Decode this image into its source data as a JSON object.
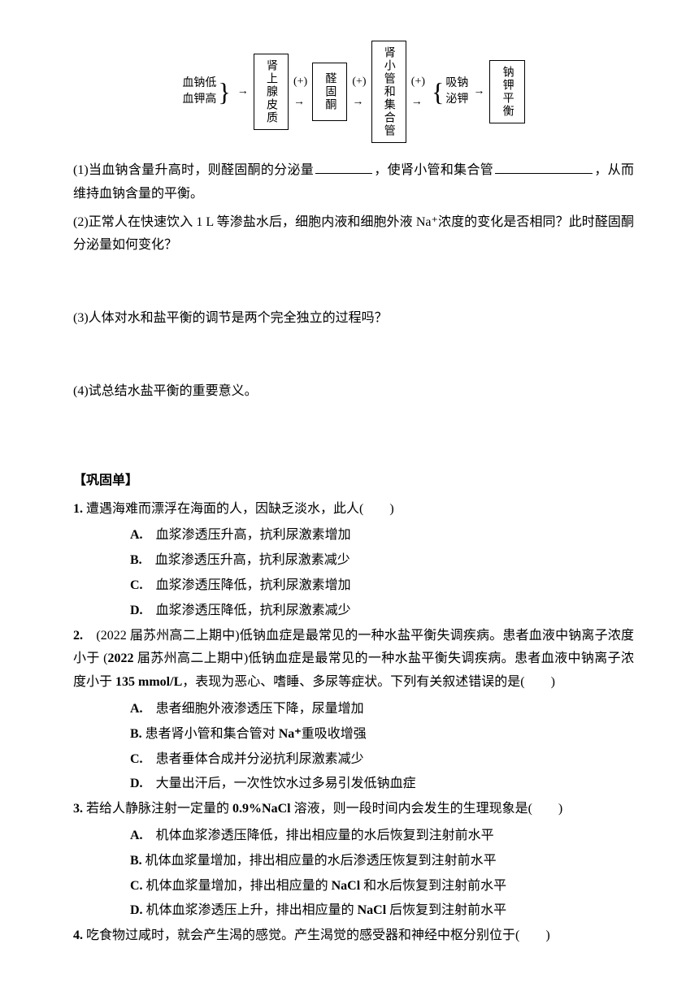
{
  "diagram": {
    "left_brace_top": "血钠低",
    "left_brace_bottom": "血钾高",
    "arrow1": "→",
    "box1": "肾上腺皮质",
    "arrow2_label": "(+)",
    "arrow2": "→",
    "box2": "醛固酮",
    "arrow3_label": "(+)",
    "arrow3": "→",
    "box3": "肾小管和集合管",
    "arrow4_label": "(+)",
    "arrow4": "→",
    "right_brace_top": "吸钠",
    "right_brace_bottom": "泌钾",
    "arrow5": "→",
    "box4": "钠钾平衡"
  },
  "q1_pre": "(1)当血钠含量升高时，则醛固酮的分泌量",
  "q1_mid": "，使肾小管和集合管",
  "q1_end": "，从而维持血钠含量的平衡。",
  "q2": "(2)正常人在快速饮入 1 L 等渗盐水后，细胞内液和细胞外液 Na⁺浓度的变化是否相同？此时醛固酮分泌量如何变化？",
  "q3": "(3)人体对水和盐平衡的调节是两个完全独立的过程吗？",
  "q4": "(4)试总结水盐平衡的重要意义。",
  "section_title": "【巩固单】",
  "mcq1": {
    "stem_prefix": "1.",
    "stem": "遭遇海难而漂浮在海面的人，因缺乏淡水，此人(　　)",
    "A": "血浆渗透压升高，抗利尿激素增加",
    "B": "血浆渗透压升高，抗利尿激素减少",
    "C": "血浆渗透压降低，抗利尿激素增加",
    "D": "血浆渗透压降低，抗利尿激素减少"
  },
  "mcq2": {
    "stem_prefix": "2.",
    "stem_a": "(2022 届苏州高二上期中)低钠血症是最常见的一种水盐平衡失调疾病。患者血液中钠离子浓度小于 ",
    "stem_bold": "135 mmol/L",
    "stem_b": "，表现为恶心、嗜睡、多尿等症状。下列有关叙述错误的是(　　)",
    "A": "患者细胞外液渗透压下降，尿量增加",
    "B_pre": "患者肾小管和集合管对 ",
    "B_bold": "Na⁺",
    "B_post": "重吸收增强",
    "C": "患者垂体合成并分泌抗利尿激素减少",
    "D": "大量出汗后，一次性饮水过多易引发低钠血症"
  },
  "mcq3": {
    "stem_prefix": "3.",
    "stem_a": "若给人静脉注射一定量的 ",
    "stem_bold": "0.9%NaCl",
    "stem_b": " 溶液，则一段时间内会发生的生理现象是(　　)",
    "A": "机体血浆渗透压降低，排出相应量的水后恢复到注射前水平",
    "B": "机体血浆量增加，排出相应量的水后渗透压恢复到注射前水平",
    "C_pre": "机体血浆量增加，排出相应量的 ",
    "C_bold": "NaCl",
    "C_post": " 和水后恢复到注射前水平",
    "D_pre": "机体血浆渗透压上升，排出相应量的 ",
    "D_bold": "NaCl",
    "D_post": " 后恢复到注射前水平"
  },
  "mcq4": {
    "stem_prefix": "4.",
    "stem": "吃食物过咸时，就会产生渴的感觉。产生渴觉的感受器和神经中枢分别位于(　　)"
  },
  "labels": {
    "A": "A.",
    "B": "B.",
    "C": "C.",
    "D": "D."
  }
}
